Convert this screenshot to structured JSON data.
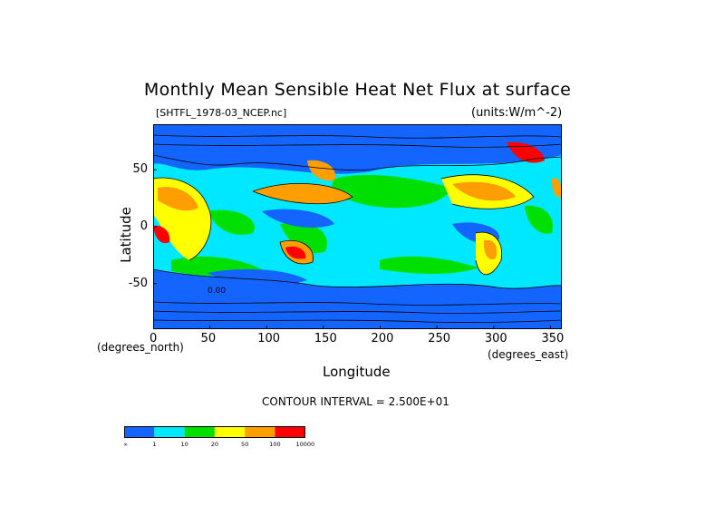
{
  "chart_data": {
    "type": "heatmap",
    "title": "Monthly Mean Sensible Heat Net Flux at surface",
    "file_label": "[SHTFL_1978-03_NCEP.nc]",
    "units_label": "(units:W/m^-2)",
    "xlabel": "Longitude",
    "ylabel": "Latitude",
    "x_unit": "(degrees_east)",
    "y_unit": "(degrees_north)",
    "xlim": [
      0,
      360
    ],
    "ylim": [
      -90,
      90
    ],
    "x_ticks": [
      0,
      50,
      100,
      150,
      200,
      250,
      300,
      350
    ],
    "y_ticks": [
      50,
      0,
      -50
    ],
    "contour_interval": "CONTOUR INTERVAL = 2.500E+01",
    "inline_contour_label": "0.00",
    "colorbar": {
      "colors": [
        "#1464ff",
        "#00e8ff",
        "#00e000",
        "#ffff00",
        "#ff9e00",
        "#ff0000"
      ],
      "labels": [
        "-∞",
        "1",
        "10",
        "20",
        "50",
        "100",
        "10000"
      ]
    }
  }
}
